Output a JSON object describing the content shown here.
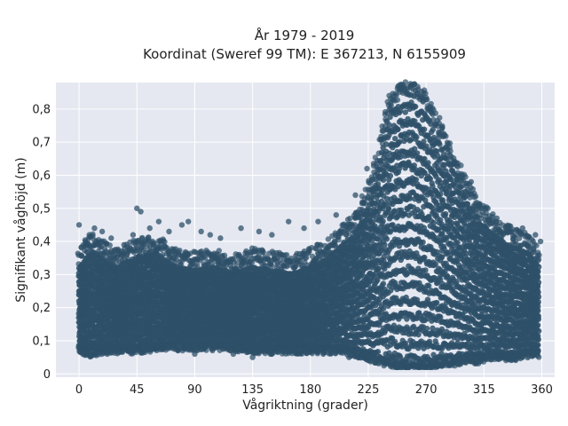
{
  "chart_data": {
    "type": "scatter",
    "title_line1": "År 1979 - 2019",
    "title_line2": "Koordinat (Sweref 99 TM): E 367213, N 6155909",
    "xlabel": "Vågriktning (grader)",
    "ylabel": "Signifikant våghöjd (m)",
    "xlim": [
      -18,
      370
    ],
    "ylim": [
      -0.01,
      0.88
    ],
    "x_ticks": [
      0,
      45,
      90,
      135,
      180,
      225,
      270,
      315,
      360
    ],
    "x_tick_labels": [
      "0",
      "45",
      "90",
      "135",
      "180",
      "225",
      "270",
      "315",
      "360"
    ],
    "y_ticks": [
      0,
      0.1,
      0.2,
      0.3,
      0.4,
      0.5,
      0.6,
      0.7,
      0.8
    ],
    "y_tick_labels": [
      "0",
      "0,1",
      "0,2",
      "0,3",
      "0,4",
      "0,5",
      "0,6",
      "0,7",
      "0,8"
    ],
    "grid": true,
    "marker_color": "#2e5068",
    "background_color": "#e5e8f1",
    "envelope_description": "dense scatter of observations; representative band per direction",
    "envelope": [
      {
        "x": 0,
        "lower": 0.08,
        "upper": 0.33
      },
      {
        "x": 10,
        "lower": 0.07,
        "upper": 0.38
      },
      {
        "x": 20,
        "lower": 0.08,
        "upper": 0.35
      },
      {
        "x": 30,
        "lower": 0.08,
        "upper": 0.33
      },
      {
        "x": 45,
        "lower": 0.08,
        "upper": 0.36
      },
      {
        "x": 60,
        "lower": 0.09,
        "upper": 0.37
      },
      {
        "x": 75,
        "lower": 0.09,
        "upper": 0.33
      },
      {
        "x": 90,
        "lower": 0.09,
        "upper": 0.32
      },
      {
        "x": 105,
        "lower": 0.09,
        "upper": 0.33
      },
      {
        "x": 120,
        "lower": 0.09,
        "upper": 0.31
      },
      {
        "x": 135,
        "lower": 0.08,
        "upper": 0.33
      },
      {
        "x": 150,
        "lower": 0.08,
        "upper": 0.32
      },
      {
        "x": 165,
        "lower": 0.08,
        "upper": 0.31
      },
      {
        "x": 180,
        "lower": 0.08,
        "upper": 0.33
      },
      {
        "x": 195,
        "lower": 0.08,
        "upper": 0.36
      },
      {
        "x": 205,
        "lower": 0.08,
        "upper": 0.4
      },
      {
        "x": 215,
        "lower": 0.07,
        "upper": 0.44
      },
      {
        "x": 225,
        "lower": 0.06,
        "upper": 0.52
      },
      {
        "x": 232,
        "lower": 0.05,
        "upper": 0.62
      },
      {
        "x": 238,
        "lower": 0.04,
        "upper": 0.74
      },
      {
        "x": 243,
        "lower": 0.04,
        "upper": 0.81
      },
      {
        "x": 250,
        "lower": 0.03,
        "upper": 0.83
      },
      {
        "x": 258,
        "lower": 0.03,
        "upper": 0.84
      },
      {
        "x": 265,
        "lower": 0.03,
        "upper": 0.82
      },
      {
        "x": 272,
        "lower": 0.03,
        "upper": 0.79
      },
      {
        "x": 280,
        "lower": 0.04,
        "upper": 0.72
      },
      {
        "x": 290,
        "lower": 0.04,
        "upper": 0.64
      },
      {
        "x": 300,
        "lower": 0.05,
        "upper": 0.55
      },
      {
        "x": 310,
        "lower": 0.05,
        "upper": 0.48
      },
      {
        "x": 320,
        "lower": 0.06,
        "upper": 0.44
      },
      {
        "x": 330,
        "lower": 0.06,
        "upper": 0.41
      },
      {
        "x": 340,
        "lower": 0.06,
        "upper": 0.39
      },
      {
        "x": 350,
        "lower": 0.07,
        "upper": 0.37
      },
      {
        "x": 358,
        "lower": 0.07,
        "upper": 0.33
      }
    ],
    "outlier_points": [
      {
        "x": 0,
        "y": 0.45
      },
      {
        "x": 5,
        "y": 0.4
      },
      {
        "x": 8,
        "y": 0.42
      },
      {
        "x": 12,
        "y": 0.44
      },
      {
        "x": 18,
        "y": 0.43
      },
      {
        "x": 25,
        "y": 0.41
      },
      {
        "x": 35,
        "y": 0.39
      },
      {
        "x": 42,
        "y": 0.42
      },
      {
        "x": 45,
        "y": 0.5
      },
      {
        "x": 48,
        "y": 0.49
      },
      {
        "x": 55,
        "y": 0.44
      },
      {
        "x": 62,
        "y": 0.46
      },
      {
        "x": 70,
        "y": 0.43
      },
      {
        "x": 80,
        "y": 0.45
      },
      {
        "x": 85,
        "y": 0.46
      },
      {
        "x": 95,
        "y": 0.43
      },
      {
        "x": 102,
        "y": 0.42
      },
      {
        "x": 110,
        "y": 0.41
      },
      {
        "x": 126,
        "y": 0.44
      },
      {
        "x": 140,
        "y": 0.43
      },
      {
        "x": 150,
        "y": 0.42
      },
      {
        "x": 163,
        "y": 0.46
      },
      {
        "x": 175,
        "y": 0.44
      },
      {
        "x": 186,
        "y": 0.46
      },
      {
        "x": 200,
        "y": 0.48
      },
      {
        "x": 215,
        "y": 0.54
      },
      {
        "x": 224,
        "y": 0.62
      },
      {
        "x": 298,
        "y": 0.6
      },
      {
        "x": 305,
        "y": 0.58
      },
      {
        "x": 318,
        "y": 0.5
      },
      {
        "x": 325,
        "y": 0.47
      },
      {
        "x": 335,
        "y": 0.43
      },
      {
        "x": 345,
        "y": 0.44
      },
      {
        "x": 355,
        "y": 0.42
      },
      {
        "x": 359,
        "y": 0.4
      },
      {
        "x": 3,
        "y": 0.06
      },
      {
        "x": 22,
        "y": 0.06
      },
      {
        "x": 50,
        "y": 0.07
      },
      {
        "x": 90,
        "y": 0.06
      },
      {
        "x": 120,
        "y": 0.06
      },
      {
        "x": 135,
        "y": 0.05
      },
      {
        "x": 150,
        "y": 0.06
      },
      {
        "x": 190,
        "y": 0.06
      },
      {
        "x": 210,
        "y": 0.05
      },
      {
        "x": 305,
        "y": 0.04
      },
      {
        "x": 330,
        "y": 0.05
      },
      {
        "x": 345,
        "y": 0.05
      }
    ]
  }
}
